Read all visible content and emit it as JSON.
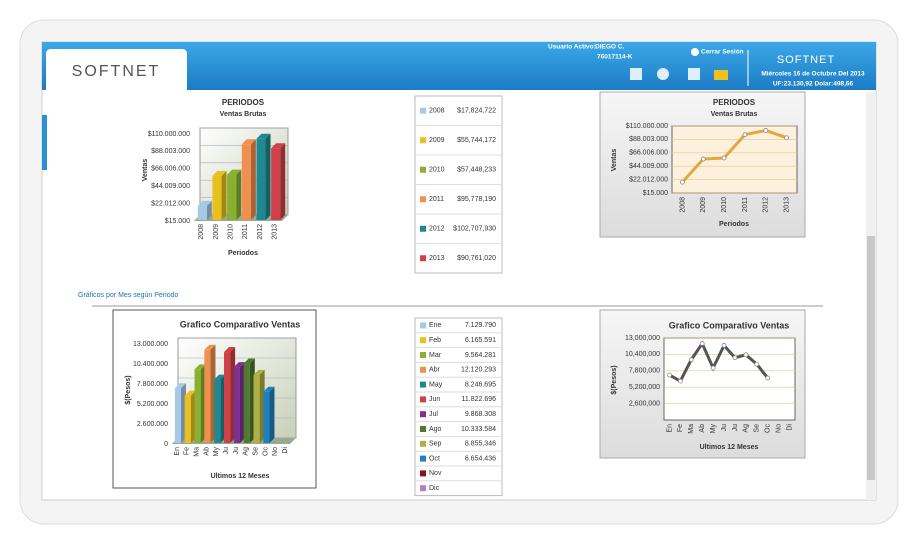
{
  "header": {
    "logo": "SOFTNET",
    "user_label": "Usuario Activo:",
    "user_name": "DIEGO C.",
    "user_id": "76017114-K",
    "logout": "Cerrar Sesión",
    "brand": "SOFTNET",
    "date": "Miércoles 16 de Octubre Del 2013",
    "indicators": "UF:23.130,92 Dolar:498,66"
  },
  "section_title": "Gráficos por Mes según Periodo",
  "chart_data": [
    {
      "type": "bar",
      "title": "PERIODOS",
      "subtitle": "Ventas Brutas",
      "ylabel": "Ventas",
      "xlabel": "Periodos",
      "categories": [
        "2008",
        "2009",
        "2010",
        "2011",
        "2012",
        "2013"
      ],
      "values": [
        17824722,
        55744172,
        57448233,
        95778190,
        102707930,
        90761020
      ],
      "colors": [
        "#a8c8e8",
        "#e8c020",
        "#8ab030",
        "#f09050",
        "#208890",
        "#d04048"
      ],
      "ylim": [
        15000,
        110000000
      ],
      "yticks": [
        {
          "value": 15000,
          "label": "$15.000"
        },
        {
          "value": 22012000,
          "label": "$22.012.000"
        },
        {
          "value": 44009000,
          "label": "$44.009.000"
        },
        {
          "value": 66006000,
          "label": "$66.006.000"
        },
        {
          "value": 88003000,
          "label": "$88.003.000"
        },
        {
          "value": 110000000,
          "label": "$110.000.000"
        }
      ],
      "grid": true
    },
    {
      "type": "line",
      "title": "PERIODOS",
      "subtitle": "Ventas Brutas",
      "ylabel": "Ventas",
      "xlabel": "Periodos",
      "categories": [
        "2008",
        "2009",
        "2010",
        "2011",
        "2012",
        "2013"
      ],
      "values": [
        17824722,
        55744172,
        57448233,
        95778190,
        102707930,
        90761020
      ],
      "color": "#e0a840",
      "ylim": [
        15000,
        110000000
      ],
      "yticks": [
        {
          "value": 15000,
          "label": "$15.000"
        },
        {
          "value": 22012000,
          "label": "$22.012.000"
        },
        {
          "value": 44009000,
          "label": "$44.009.000"
        },
        {
          "value": 66006000,
          "label": "$66.006.000"
        },
        {
          "value": 88003000,
          "label": "$88.003.000"
        },
        {
          "value": 110000000,
          "label": "$110.000.000"
        }
      ],
      "grid": true
    },
    {
      "type": "bar",
      "title": "Grafico Comparativo Ventas",
      "ylabel": "$(Pesos)",
      "xlabel": "Ultimos 12 Meses",
      "categories": [
        "En",
        "Fe",
        "Ma",
        "Ab",
        "My",
        "Ju",
        "Ju",
        "Ag",
        "Se",
        "Oc",
        "No",
        "Di"
      ],
      "values": [
        7129790,
        6165591,
        9564281,
        12120293,
        8246695,
        11822696,
        9868308,
        10333584,
        8855346,
        6654436,
        null,
        null
      ],
      "colors": [
        "#a8c8e8",
        "#e8c020",
        "#8ab030",
        "#f09050",
        "#208890",
        "#d04048",
        "#803090",
        "#507830",
        "#b0b040",
        "#2080c0",
        "#801818",
        "#b080c0"
      ],
      "ylim": [
        0,
        13000000
      ],
      "yticks": [
        0,
        {
          "value": 2600000,
          "label": "2.600.000"
        },
        {
          "value": 5200000,
          "label": "5.200.000"
        },
        {
          "value": 7800000,
          "label": "7.800.000"
        },
        {
          "value": 10400000,
          "label": "10.400.000"
        },
        {
          "value": 13000000,
          "label": "13.000.000"
        }
      ],
      "grid": true
    },
    {
      "type": "line",
      "title": "Grafico Comparativo Ventas",
      "ylabel": "$(Pesos)",
      "xlabel": "Ultimos 12 Meses",
      "categories": [
        "En",
        "Fe",
        "Ma",
        "Ab",
        "My",
        "Ju",
        "Ju",
        "Ag",
        "Se",
        "Oc",
        "No",
        "Di"
      ],
      "values": [
        7129790,
        6165591,
        9564281,
        12120293,
        8246695,
        11822696,
        9868308,
        10333584,
        8855346,
        6654436,
        null,
        null
      ],
      "color": "#555555",
      "ylim": [
        0,
        13000000
      ],
      "yticks": [
        {
          "value": 2600000,
          "label": "2,600,000"
        },
        {
          "value": 5200000,
          "label": "5,200,000"
        },
        {
          "value": 7800000,
          "label": "7,800,000"
        },
        {
          "value": 10400000,
          "label": "10,400,000"
        },
        {
          "value": 13000000,
          "label": "13,000,000"
        }
      ],
      "grid": true
    }
  ],
  "tables": [
    {
      "rows": [
        {
          "label": "2008",
          "value": "$17,824,722",
          "color": "#a8c8e8"
        },
        {
          "label": "2009",
          "value": "$55,744,172",
          "color": "#e8c020"
        },
        {
          "label": "2010",
          "value": "$57,448,233",
          "color": "#8ab030"
        },
        {
          "label": "2011",
          "value": "$95,778,190",
          "color": "#f09050"
        },
        {
          "label": "2012",
          "value": "$102,707,930",
          "color": "#208890"
        },
        {
          "label": "2013",
          "value": "$90,761,020",
          "color": "#d04048"
        }
      ]
    },
    {
      "rows": [
        {
          "label": "Ene",
          "value": "7.129.790",
          "color": "#a8c8e8"
        },
        {
          "label": "Feb",
          "value": "6.165.591",
          "color": "#e8c020"
        },
        {
          "label": "Mar",
          "value": "9.564.281",
          "color": "#8ab030"
        },
        {
          "label": "Abr",
          "value": "12.120.293",
          "color": "#f09050"
        },
        {
          "label": "May",
          "value": "8.246.695",
          "color": "#208890"
        },
        {
          "label": "Jun",
          "value": "11.822.696",
          "color": "#d04048"
        },
        {
          "label": "Jul",
          "value": "9.868.308",
          "color": "#803090"
        },
        {
          "label": "Ago",
          "value": "10.333.584",
          "color": "#507830"
        },
        {
          "label": "Sep",
          "value": "8.855.346",
          "color": "#b0b040"
        },
        {
          "label": "Oct",
          "value": "6.654.436",
          "color": "#2080c0"
        },
        {
          "label": "Nov",
          "color": "#801818"
        },
        {
          "label": "Dic",
          "color": "#b080c0"
        }
      ]
    }
  ]
}
